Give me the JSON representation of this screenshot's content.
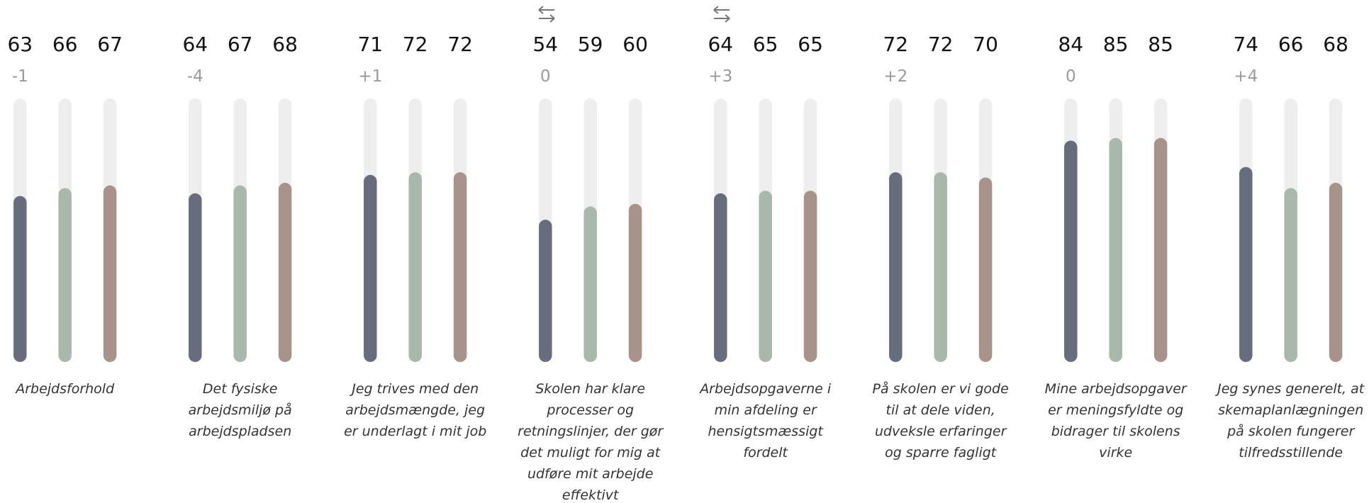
{
  "chart_data": {
    "type": "bar",
    "categories": [
      "Arbejdsforhold",
      "Det fysiske arbejdsmiljø på arbejdspladsen",
      "Jeg trives med den arbejdsmængde, jeg er underlagt i mit job",
      "Skolen har klare processer og retningslinjer, der gør det muligt for mig at udføre mit arbejde effektivt",
      "Arbejdsopgaverne i min afdeling er hensigtsmæssigt fordelt",
      "På skolen er vi gode til at dele viden, udveksle erfaringer og sparre fagligt",
      "Mine arbejdsopgaver er meningsfyldte og bidrager til skolens virke",
      "Jeg synes generelt, at skemaplanlægningen på skolen fungerer tilfredsstillende"
    ],
    "change_labels": [
      "-1",
      "-4",
      "+1",
      "0",
      "+3",
      "+2",
      "0",
      "+4"
    ],
    "series": [
      {
        "color": "#676d7c",
        "values": [
          63,
          64,
          71,
          54,
          64,
          72,
          84,
          74
        ]
      },
      {
        "color": "#a8b8aa",
        "values": [
          66,
          67,
          72,
          59,
          65,
          72,
          85,
          66
        ]
      },
      {
        "color": "#a8938a",
        "values": [
          67,
          68,
          72,
          60,
          65,
          70,
          85,
          68
        ]
      }
    ],
    "track_color": "#eeeeee",
    "ylim": [
      0,
      100
    ]
  }
}
